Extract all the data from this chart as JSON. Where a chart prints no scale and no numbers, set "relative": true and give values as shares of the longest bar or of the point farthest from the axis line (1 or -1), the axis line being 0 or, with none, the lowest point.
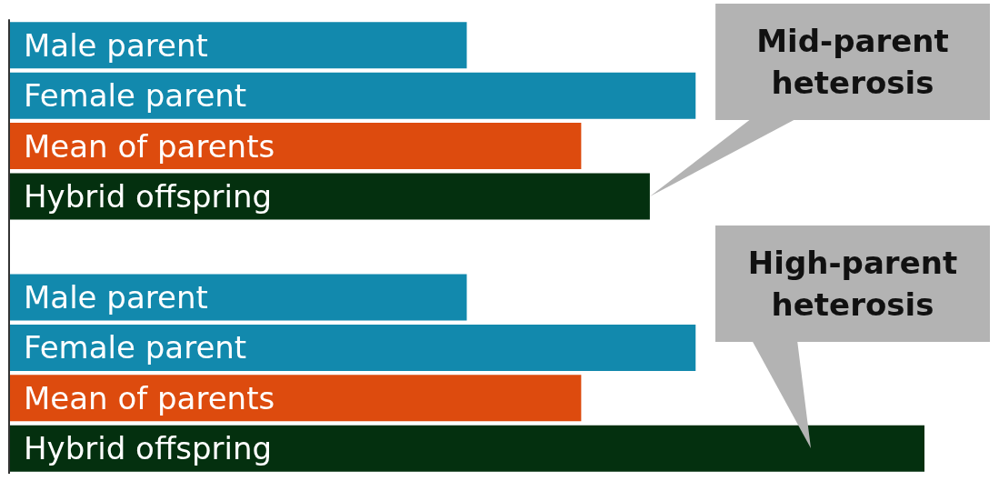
{
  "chart_data": {
    "type": "bar",
    "orientation": "horizontal",
    "relative": true,
    "categories": [
      "Male parent",
      "Female parent",
      "Mean of parents",
      "Hybrid offspring",
      null,
      "Male parent",
      "Female parent",
      "Mean of parents",
      "Hybrid offspring"
    ],
    "values": [
      0.5,
      0.75,
      0.625,
      0.7,
      null,
      0.5,
      0.75,
      0.625,
      1
    ],
    "colors": [
      "#1289ad",
      "#1289ad",
      "#dd4b0e",
      "#04300f",
      null,
      "#1289ad",
      "#1289ad",
      "#dd4b0e",
      "#04300f"
    ],
    "annotations": [
      "Mid-parent heterosis",
      "High-parent heterosis"
    ]
  }
}
